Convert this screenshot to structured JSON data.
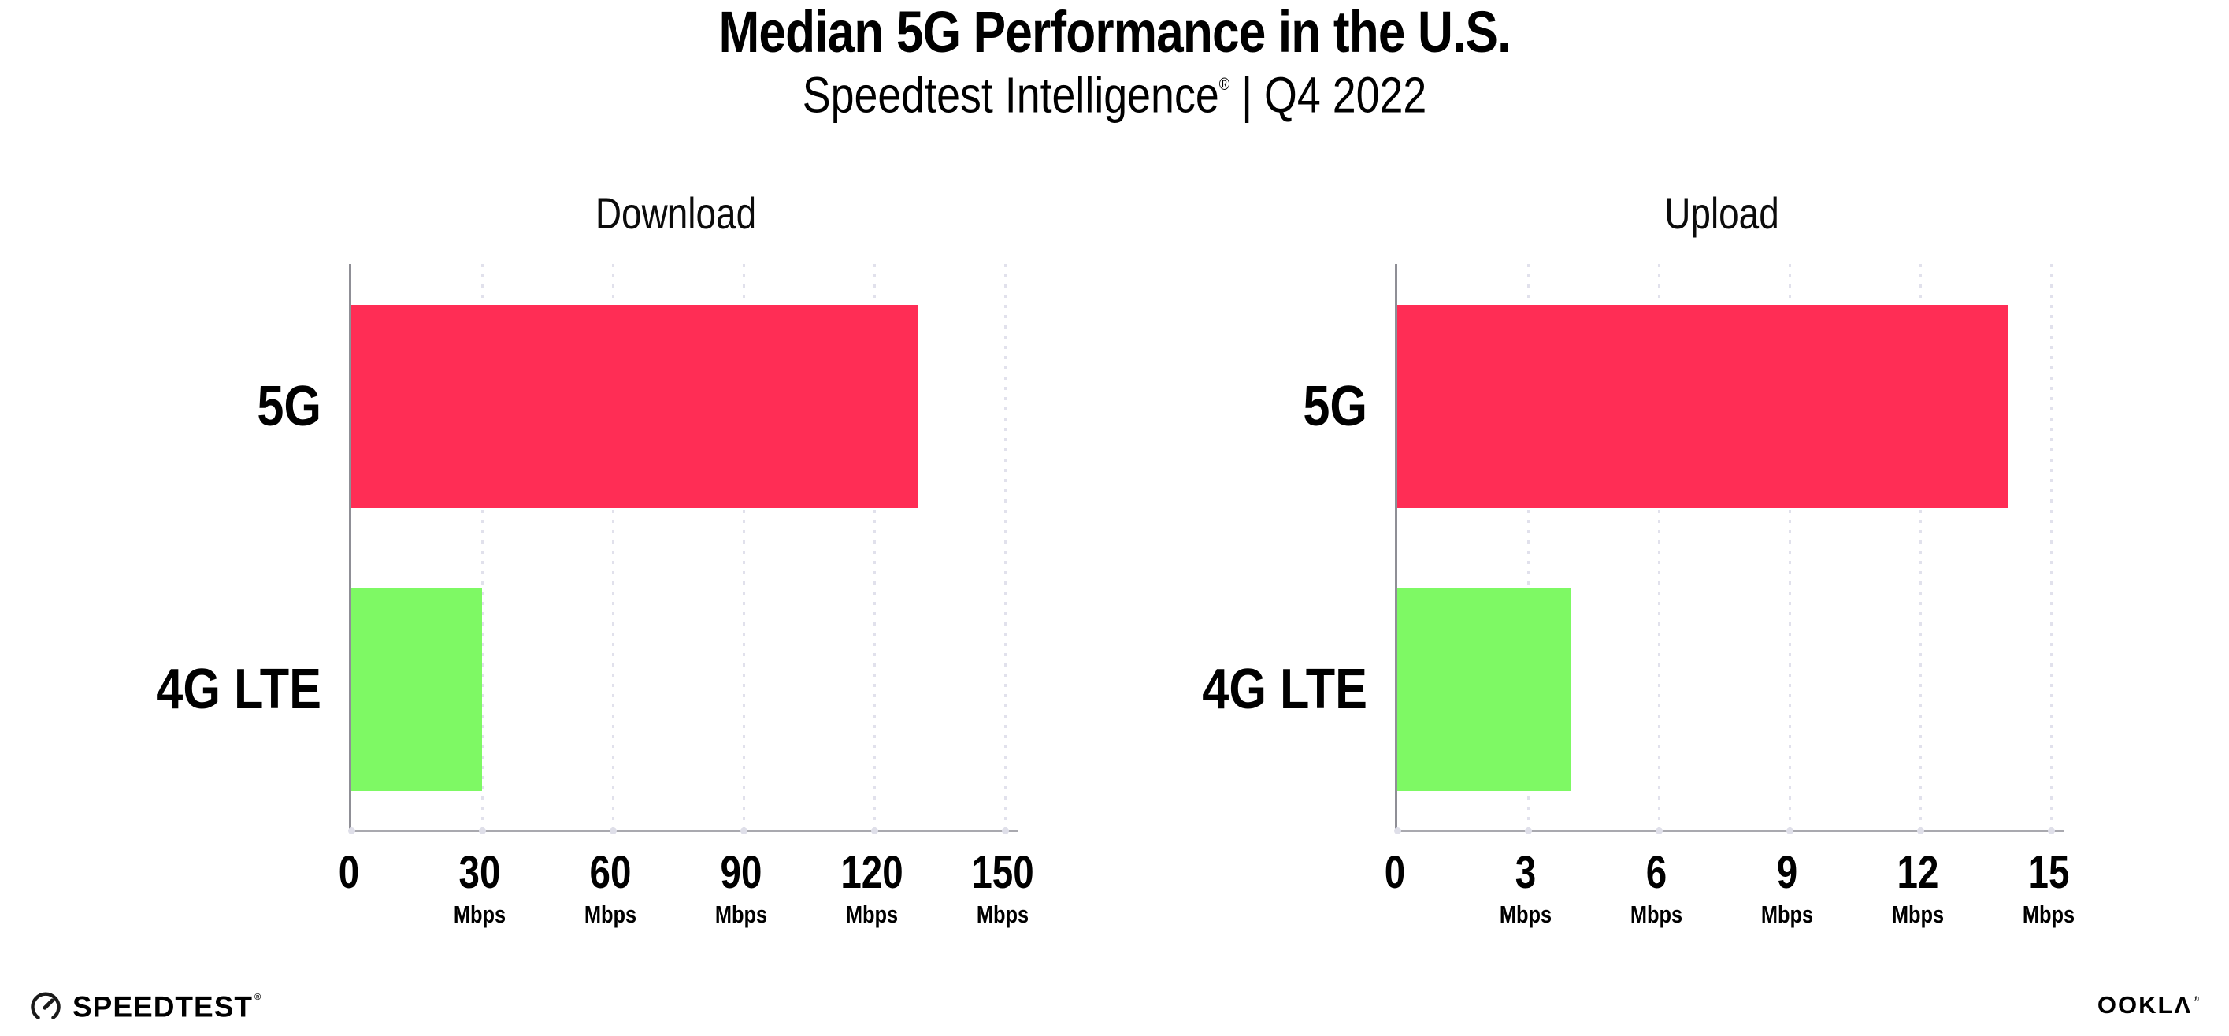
{
  "header": {
    "title": "Median 5G Performance in the U.S.",
    "subtitle_brand": "Speedtest Intelligence",
    "subtitle_reg": "®",
    "subtitle_rest": " | Q4 2022"
  },
  "footer": {
    "speedtest_label": "SPEEDTEST",
    "speedtest_reg": "®",
    "ookla_label": "OOKLΛ",
    "ookla_reg": "®"
  },
  "colors": {
    "bar_5g": "#FF2D55",
    "bar_4g_lte": "#7EF964",
    "gridline": "#E1E1EC",
    "axis_left": "#8F8F96",
    "axis_bottom": "#A9A9AF",
    "text": "#000000"
  },
  "chart_data": [
    {
      "type": "bar",
      "orientation": "horizontal",
      "title": "Download",
      "categories": [
        "5G",
        "4G LTE"
      ],
      "values": [
        130,
        30
      ],
      "unit": "Mbps",
      "xlabel": "",
      "ylabel": "",
      "xlim": [
        0,
        150
      ],
      "ticks": [
        0,
        30,
        60,
        90,
        120,
        150
      ],
      "grid": "vertical-dotted",
      "legend": "none",
      "bar_colors": [
        "#FF2D55",
        "#7EF964"
      ]
    },
    {
      "type": "bar",
      "orientation": "horizontal",
      "title": "Upload",
      "categories": [
        "5G",
        "4G LTE"
      ],
      "values": [
        14,
        4
      ],
      "unit": "Mbps",
      "xlabel": "",
      "ylabel": "",
      "xlim": [
        0,
        15
      ],
      "ticks": [
        0,
        3,
        6,
        9,
        12,
        15
      ],
      "grid": "vertical-dotted",
      "legend": "none",
      "bar_colors": [
        "#FF2D55",
        "#7EF964"
      ]
    }
  ]
}
